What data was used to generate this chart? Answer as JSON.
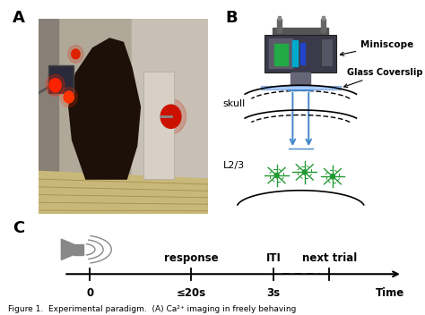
{
  "bg_color": "#ffffff",
  "label_A": "A",
  "label_B": "B",
  "label_C": "C",
  "panel_B": {
    "miniscope_label": "Miniscope",
    "coverslip_label": "Glass Coverslip",
    "skull_label": "skull",
    "layer_label": "L2/3"
  },
  "caption": "Figure 1.  Experimental paradigm.  (A) Ca²⁺ imaging in freely behaving"
}
